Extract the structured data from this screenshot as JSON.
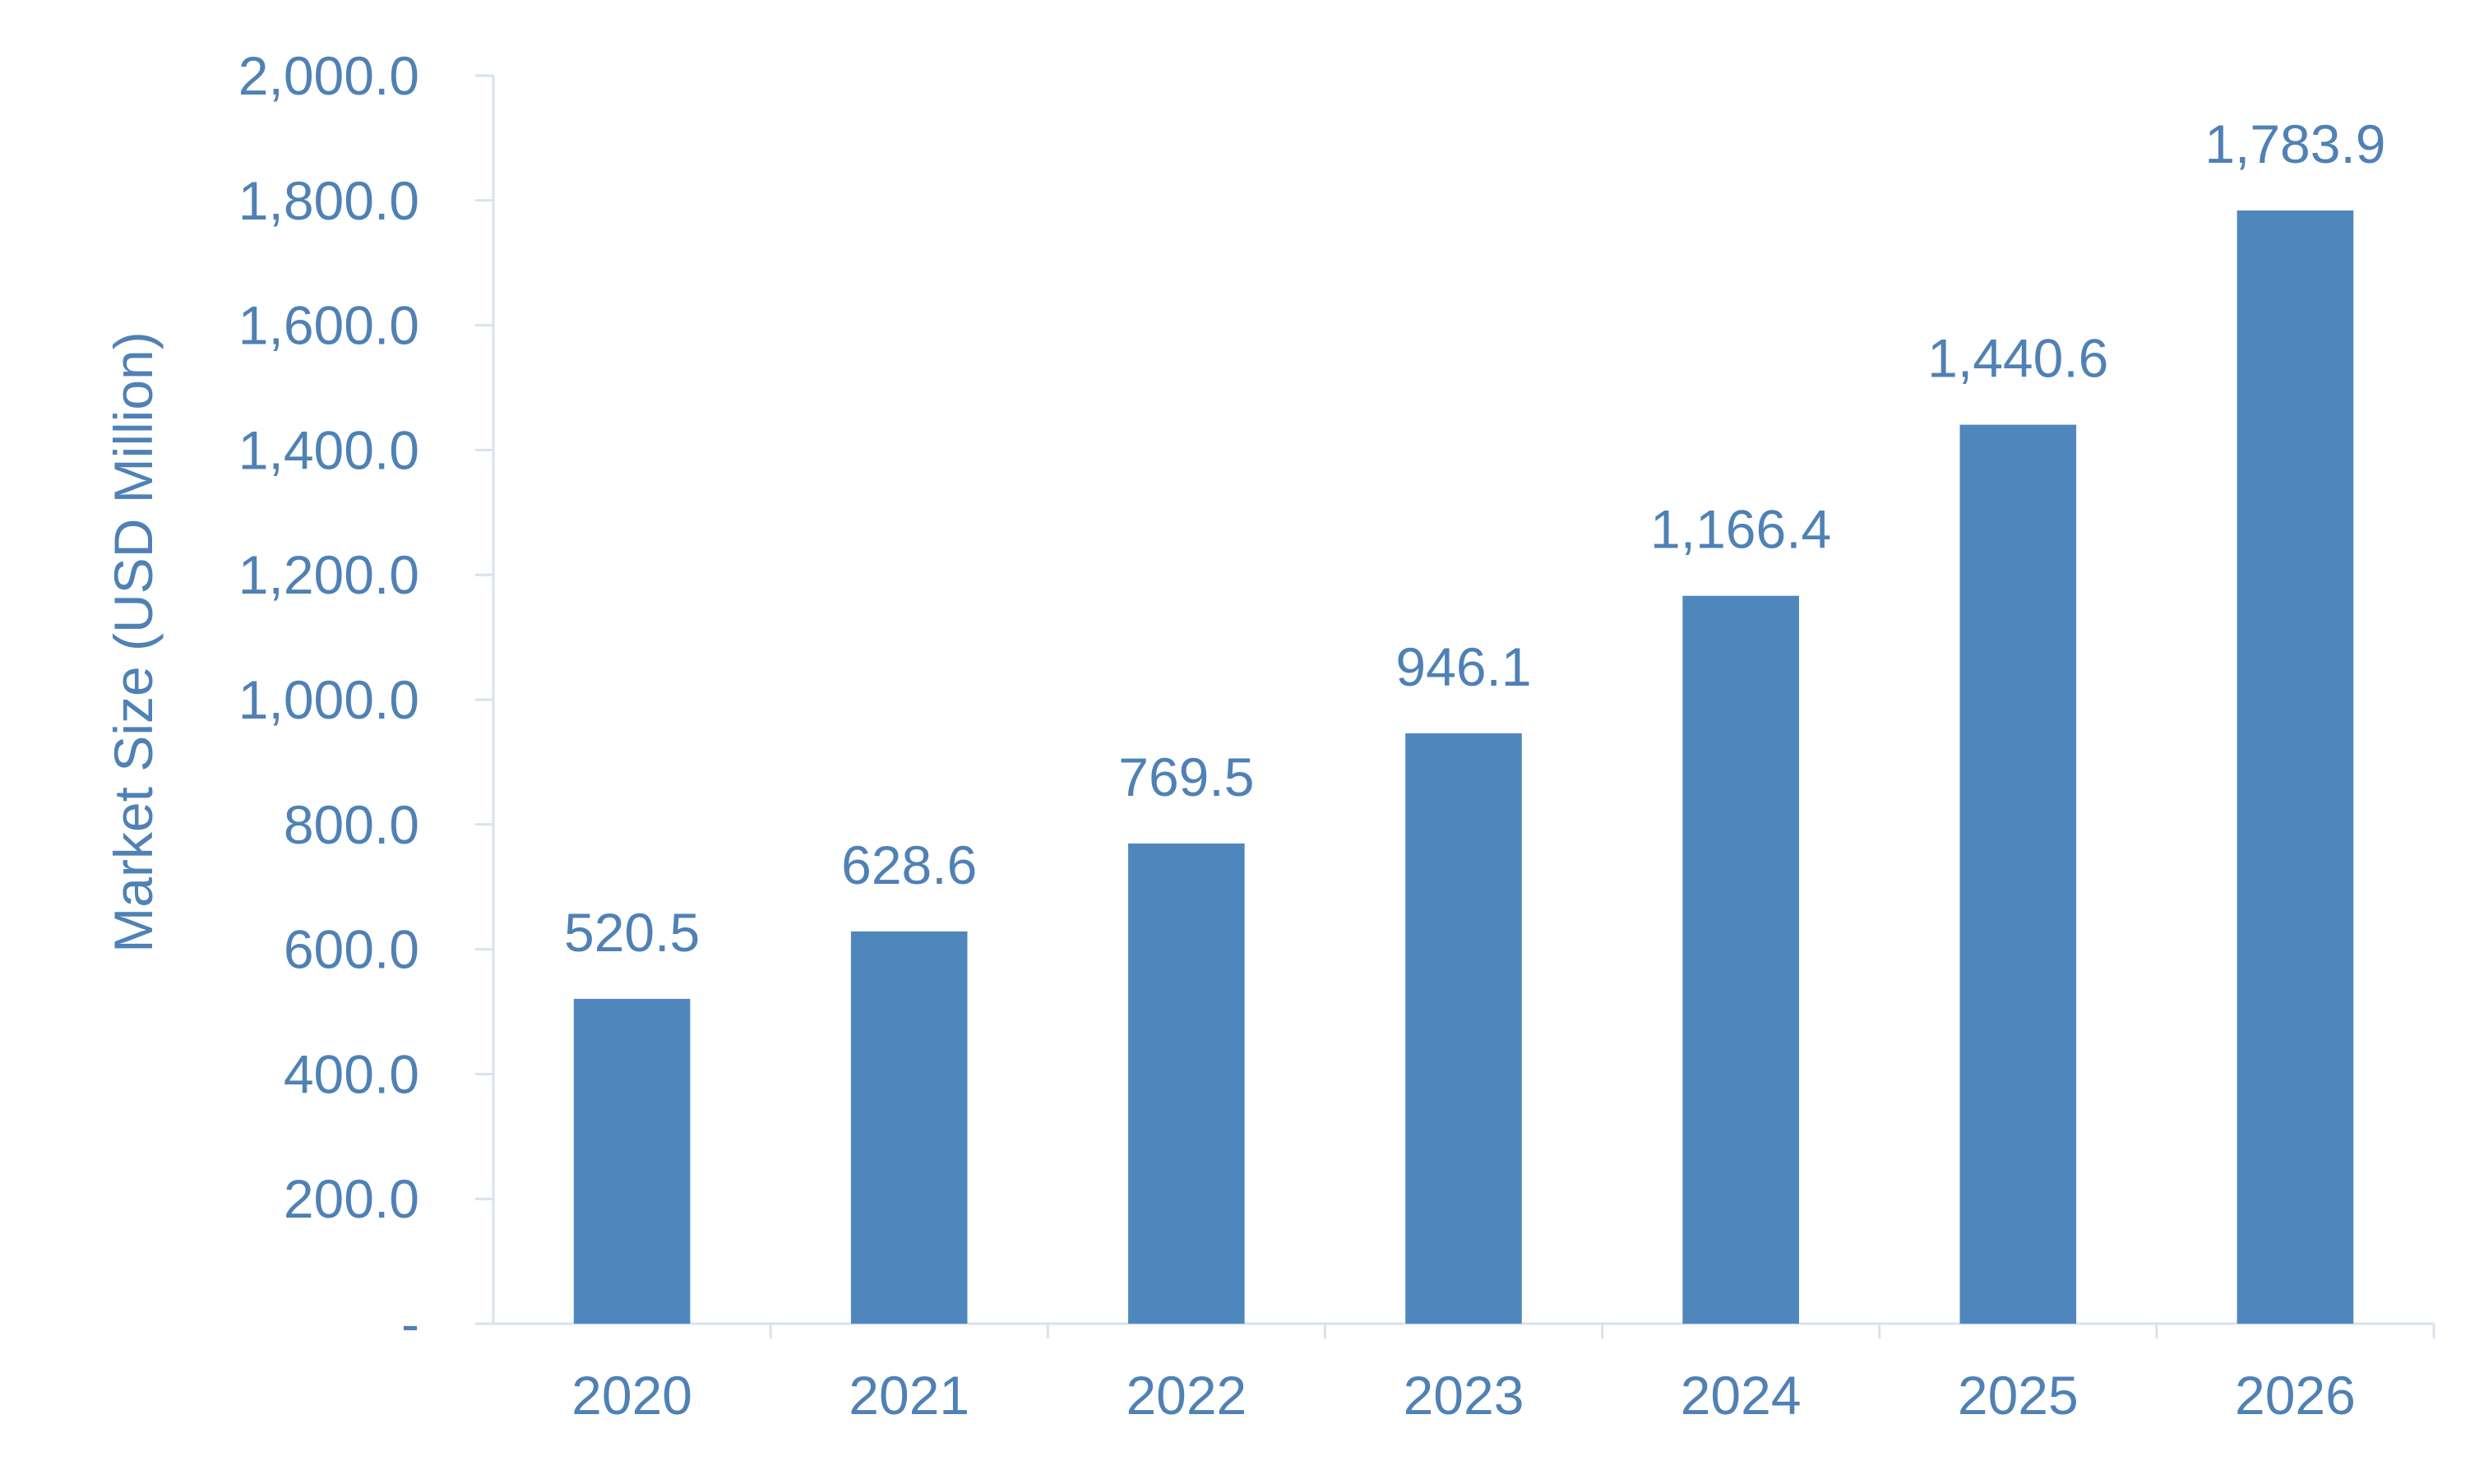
{
  "chart_data": {
    "type": "bar",
    "title": "",
    "xlabel": "",
    "ylabel": "Market Size (USD Million)",
    "categories": [
      "2020",
      "2021",
      "2022",
      "2023",
      "2024",
      "2025",
      "2026"
    ],
    "values": [
      520.5,
      628.6,
      769.5,
      946.1,
      1166.4,
      1440.6,
      1783.9
    ],
    "data_labels": [
      "520.5",
      "628.6",
      "769.5",
      "946.1",
      "1,166.4",
      "1,440.6",
      "1,783.9"
    ],
    "ylim": [
      0,
      2000
    ],
    "yticks": [
      0,
      200,
      400,
      600,
      800,
      1000,
      1200,
      1400,
      1600,
      1800,
      2000
    ],
    "ytick_labels": [
      "-",
      "200.0",
      "400.0",
      "600.0",
      "800.0",
      "1,000.0",
      "1,200.0",
      "1,400.0",
      "1,600.0",
      "1,800.0",
      "2,000.0"
    ],
    "grid": false,
    "legend": "none",
    "colors": {
      "bar": "#4f87bd",
      "text": "#4f81b5",
      "axis": "#d9e2ec"
    }
  }
}
